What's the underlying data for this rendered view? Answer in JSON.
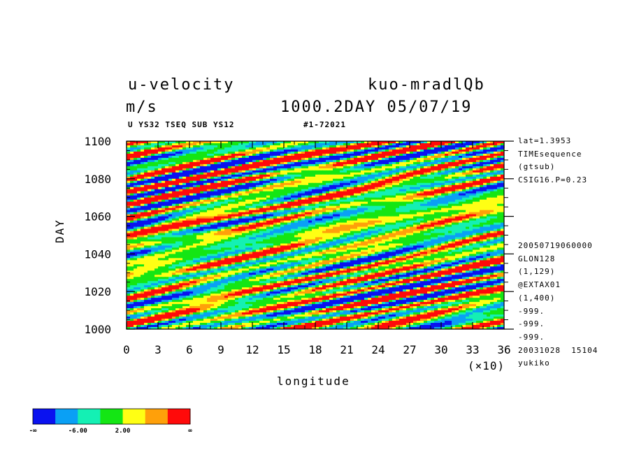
{
  "header": {
    "title_left": "u-velocity",
    "title_right": "kuo-mradlQb",
    "units": "m/s",
    "subtitle_right": "1000.2DAY 05/07/19",
    "code_left": "U YS32 TSEQ SUB YS12",
    "code_right": "#1-72021"
  },
  "side_info": {
    "top": [
      "lat=1.3953",
      "TIMEsequence",
      "(gtsub)",
      "CSIG16.P=0.23"
    ],
    "bottom": [
      "20050719060000",
      "GLON128",
      "(1,129)",
      "@EXTAX01",
      "(1,400)",
      "-999.",
      "-999.",
      "-999.",
      "20031028  15104",
      "yukiko"
    ]
  },
  "chart_data": {
    "type": "heatmap",
    "title": "u-velocity",
    "xlabel": "longitude",
    "ylabel": "DAY",
    "x_multiplier": "(×10)",
    "xlim": [
      0,
      36
    ],
    "ylim": [
      1000,
      1100
    ],
    "x_ticks": [
      "0",
      "3",
      "6",
      "9",
      "12",
      "15",
      "18",
      "21",
      "24",
      "27",
      "30",
      "33",
      "36"
    ],
    "y_ticks": [
      "1000",
      "1020",
      "1040",
      "1060",
      "1080",
      "1100"
    ],
    "color_levels": [
      "#0a12f0",
      "#0aa0f5",
      "#14f0b4",
      "#14e614",
      "#ffff14",
      "#ffa00a",
      "#ff0a0a"
    ],
    "colorbar_labels": [
      "-∞",
      "-6.00",
      "2.00",
      "∞"
    ]
  }
}
